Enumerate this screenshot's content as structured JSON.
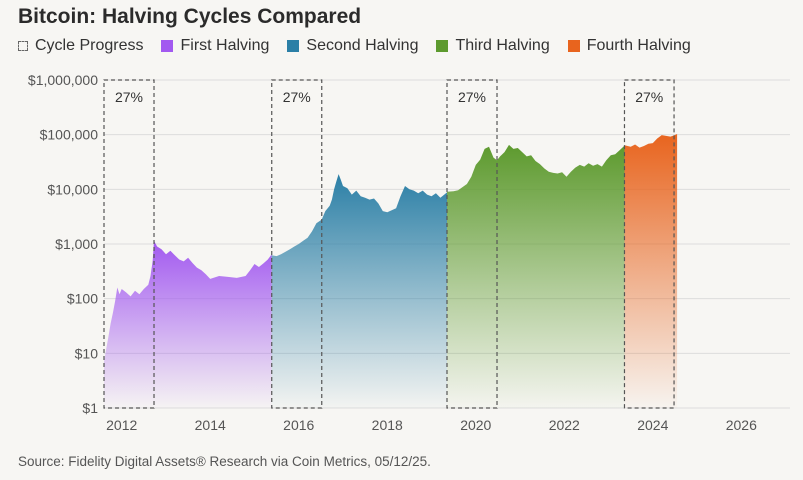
{
  "title": "Bitcoin: Halving Cycles Compared",
  "source": "Source: Fidelity Digital Assets® Research via Coin Metrics, 05/12/25.",
  "legend": [
    {
      "label": "Cycle Progress",
      "style": "dashed",
      "color": "#666666"
    },
    {
      "label": "First Halving",
      "color": "#a259f0"
    },
    {
      "label": "Second Halving",
      "color": "#2b7fa6"
    },
    {
      "label": "Third Halving",
      "color": "#5d9a2e"
    },
    {
      "label": "Fourth Halving",
      "color": "#e8641e"
    }
  ],
  "chart_data": {
    "type": "area",
    "y_scale": "log",
    "ylim": [
      1,
      1000000
    ],
    "xlim": [
      2011.6,
      2027.1
    ],
    "y_ticks": [
      {
        "value": 1,
        "label": "$1"
      },
      {
        "value": 10,
        "label": "$10"
      },
      {
        "value": 100,
        "label": "$100"
      },
      {
        "value": 1000,
        "label": "$1,000"
      },
      {
        "value": 10000,
        "label": "$10,000"
      },
      {
        "value": 100000,
        "label": "$100,000"
      },
      {
        "value": 1000000,
        "label": "$1,000,000"
      }
    ],
    "x_ticks": [
      {
        "value": 2012,
        "label": "2012"
      },
      {
        "value": 2014,
        "label": "2014"
      },
      {
        "value": 2016,
        "label": "2016"
      },
      {
        "value": 2018,
        "label": "2018"
      },
      {
        "value": 2020,
        "label": "2020"
      },
      {
        "value": 2022,
        "label": "2022"
      },
      {
        "value": 2024,
        "label": "2024"
      },
      {
        "value": 2026,
        "label": "2026"
      }
    ],
    "grid": true,
    "cycle_progress": [
      {
        "start": 2011.6,
        "end": 2012.73,
        "label": "27%"
      },
      {
        "start": 2015.39,
        "end": 2016.52,
        "label": "27%"
      },
      {
        "start": 2019.35,
        "end": 2020.48,
        "label": "27%"
      },
      {
        "start": 2023.36,
        "end": 2024.48,
        "label": "27%"
      }
    ],
    "series": [
      {
        "name": "First Halving",
        "color": "#a259f0",
        "points": [
          [
            2011.6,
            7
          ],
          [
            2011.65,
            12
          ],
          [
            2011.7,
            20
          ],
          [
            2011.75,
            35
          ],
          [
            2011.8,
            55
          ],
          [
            2011.85,
            90
          ],
          [
            2011.9,
            160
          ],
          [
            2011.95,
            120
          ],
          [
            2012.0,
            150
          ],
          [
            2012.1,
            130
          ],
          [
            2012.2,
            110
          ],
          [
            2012.3,
            140
          ],
          [
            2012.4,
            120
          ],
          [
            2012.5,
            150
          ],
          [
            2012.6,
            180
          ],
          [
            2012.65,
            260
          ],
          [
            2012.7,
            500
          ],
          [
            2012.73,
            1150
          ],
          [
            2012.8,
            900
          ],
          [
            2012.9,
            800
          ],
          [
            2013.0,
            650
          ],
          [
            2013.1,
            750
          ],
          [
            2013.2,
            620
          ],
          [
            2013.3,
            520
          ],
          [
            2013.4,
            480
          ],
          [
            2013.5,
            560
          ],
          [
            2013.6,
            450
          ],
          [
            2013.7,
            370
          ],
          [
            2013.8,
            330
          ],
          [
            2013.9,
            280
          ],
          [
            2014.0,
            230
          ],
          [
            2014.2,
            260
          ],
          [
            2014.4,
            250
          ],
          [
            2014.6,
            240
          ],
          [
            2014.8,
            260
          ],
          [
            2014.9,
            330
          ],
          [
            2015.0,
            430
          ],
          [
            2015.1,
            380
          ],
          [
            2015.2,
            440
          ],
          [
            2015.3,
            520
          ],
          [
            2015.39,
            650
          ]
        ]
      },
      {
        "name": "Second Halving",
        "color": "#2b7fa6",
        "points": [
          [
            2015.39,
            620
          ],
          [
            2015.5,
            600
          ],
          [
            2015.6,
            650
          ],
          [
            2015.7,
            720
          ],
          [
            2015.8,
            800
          ],
          [
            2015.9,
            900
          ],
          [
            2016.0,
            1000
          ],
          [
            2016.1,
            1150
          ],
          [
            2016.2,
            1300
          ],
          [
            2016.3,
            1700
          ],
          [
            2016.4,
            2400
          ],
          [
            2016.52,
            2800
          ],
          [
            2016.6,
            4000
          ],
          [
            2016.7,
            5000
          ],
          [
            2016.75,
            6500
          ],
          [
            2016.8,
            10000
          ],
          [
            2016.85,
            14000
          ],
          [
            2016.9,
            19000
          ],
          [
            2016.95,
            15000
          ],
          [
            2017.0,
            11500
          ],
          [
            2017.1,
            10500
          ],
          [
            2017.2,
            8000
          ],
          [
            2017.3,
            9500
          ],
          [
            2017.4,
            7500
          ],
          [
            2017.5,
            7000
          ],
          [
            2017.6,
            6500
          ],
          [
            2017.7,
            6800
          ],
          [
            2017.8,
            5500
          ],
          [
            2017.9,
            4000
          ],
          [
            2018.0,
            3800
          ],
          [
            2018.2,
            4500
          ],
          [
            2018.3,
            7500
          ],
          [
            2018.4,
            11500
          ],
          [
            2018.5,
            10000
          ],
          [
            2018.6,
            9500
          ],
          [
            2018.7,
            8500
          ],
          [
            2018.8,
            9500
          ],
          [
            2018.9,
            8000
          ],
          [
            2019.0,
            7500
          ],
          [
            2019.1,
            8500
          ],
          [
            2019.2,
            7000
          ],
          [
            2019.35,
            8800
          ]
        ]
      },
      {
        "name": "Third Halving",
        "color": "#5d9a2e",
        "points": [
          [
            2019.35,
            9000
          ],
          [
            2019.5,
            9200
          ],
          [
            2019.6,
            9600
          ],
          [
            2019.7,
            11000
          ],
          [
            2019.8,
            12500
          ],
          [
            2019.9,
            17000
          ],
          [
            2020.0,
            28000
          ],
          [
            2020.1,
            35000
          ],
          [
            2020.2,
            55000
          ],
          [
            2020.3,
            60000
          ],
          [
            2020.4,
            38000
          ],
          [
            2020.48,
            34000
          ],
          [
            2020.55,
            40000
          ],
          [
            2020.65,
            48000
          ],
          [
            2020.75,
            65000
          ],
          [
            2020.85,
            55000
          ],
          [
            2020.95,
            57000
          ],
          [
            2021.05,
            48000
          ],
          [
            2021.15,
            40000
          ],
          [
            2021.25,
            42000
          ],
          [
            2021.35,
            33000
          ],
          [
            2021.45,
            29000
          ],
          [
            2021.55,
            24000
          ],
          [
            2021.65,
            21000
          ],
          [
            2021.75,
            20000
          ],
          [
            2021.85,
            19500
          ],
          [
            2021.95,
            20500
          ],
          [
            2022.05,
            17000
          ],
          [
            2022.15,
            21000
          ],
          [
            2022.25,
            25000
          ],
          [
            2022.35,
            28000
          ],
          [
            2022.45,
            26000
          ],
          [
            2022.55,
            30000
          ],
          [
            2022.65,
            27000
          ],
          [
            2022.75,
            29000
          ],
          [
            2022.85,
            26000
          ],
          [
            2022.95,
            34000
          ],
          [
            2023.05,
            42000
          ],
          [
            2023.15,
            44000
          ],
          [
            2023.25,
            52000
          ],
          [
            2023.36,
            63000
          ]
        ]
      },
      {
        "name": "Fourth Halving",
        "color": "#e8641e",
        "points": [
          [
            2023.36,
            64000
          ],
          [
            2023.5,
            60000
          ],
          [
            2023.6,
            66000
          ],
          [
            2023.7,
            58000
          ],
          [
            2023.8,
            62000
          ],
          [
            2023.9,
            68000
          ],
          [
            2024.0,
            70000
          ],
          [
            2024.1,
            85000
          ],
          [
            2024.2,
            98000
          ],
          [
            2024.3,
            95000
          ],
          [
            2024.4,
            92000
          ],
          [
            2024.48,
            97000
          ],
          [
            2024.55,
            103000
          ]
        ]
      }
    ]
  }
}
